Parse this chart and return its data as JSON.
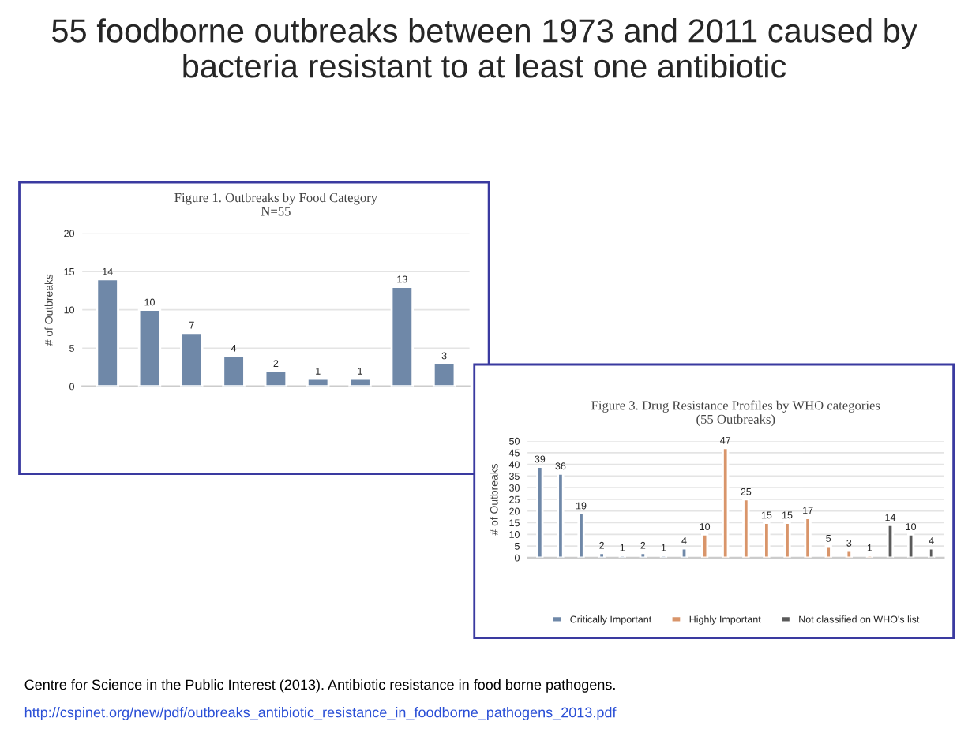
{
  "chart_data": [
    {
      "type": "other",
      "title": "55 foodborne outbreaks between 1973 and 2011 caused by bacteria resistant to at least one antibiotic",
      "annotations": [
        "Centre for Science in the Public Interest (2013). Antibiotic resistance in food borne pathogens.",
        "http://cspinet.org/new/pdf/outbreaks_antibiotic_resistance_in_foodborne_pathogens_2013.pdf"
      ]
    },
    {
      "type": "bar",
      "title": "Figure 1. Outbreaks by Food Category",
      "subtitle": "N=55",
      "ylabel": "# of Outbreaks",
      "categories": [
        null,
        null,
        null,
        null,
        null,
        null,
        null,
        null,
        null
      ],
      "series": [
        {
          "color": "#6f88a8",
          "values": [
            14,
            10,
            7,
            4,
            2,
            1,
            1,
            13,
            3
          ]
        }
      ],
      "ylim": [
        0,
        20
      ],
      "yticks": [
        0,
        5,
        10,
        15,
        20
      ],
      "grid": "y",
      "data_labels": true,
      "tick_labels": "y"
    },
    {
      "type": "bar",
      "title": "Figure 3. Drug Resistance Profiles by WHO categories",
      "subtitle": "(55 Outbreaks)",
      "ylabel": "# of Outbreaks",
      "categories": [
        null,
        null,
        null,
        null,
        null,
        null,
        null,
        null,
        null,
        null,
        null,
        null,
        null,
        null,
        null,
        null,
        null,
        null,
        null,
        null
      ],
      "series": [
        {
          "name": "Critically Important",
          "color": "#6f88a8",
          "values": [
            39,
            36,
            19,
            2,
            1,
            2,
            1,
            4,
            null,
            null,
            null,
            null,
            null,
            null,
            null,
            null,
            null,
            null,
            null,
            null
          ]
        },
        {
          "name": "Highly Important",
          "color": "#d9956a",
          "values": [
            null,
            null,
            null,
            null,
            null,
            null,
            null,
            null,
            10,
            47,
            25,
            15,
            15,
            17,
            5,
            3,
            1,
            null,
            null,
            null
          ]
        },
        {
          "name": "Not classified on WHO's list",
          "color": "#5a5a5a",
          "values": [
            null,
            null,
            null,
            null,
            null,
            null,
            null,
            null,
            null,
            null,
            null,
            null,
            null,
            null,
            null,
            null,
            null,
            14,
            10,
            4
          ]
        }
      ],
      "ylim": [
        0,
        50
      ],
      "yticks": [
        0,
        5,
        10,
        15,
        20,
        25,
        30,
        35,
        40,
        45,
        50
      ],
      "grid": "y",
      "data_labels": true,
      "tick_labels": "y",
      "legend": "bottom"
    }
  ]
}
